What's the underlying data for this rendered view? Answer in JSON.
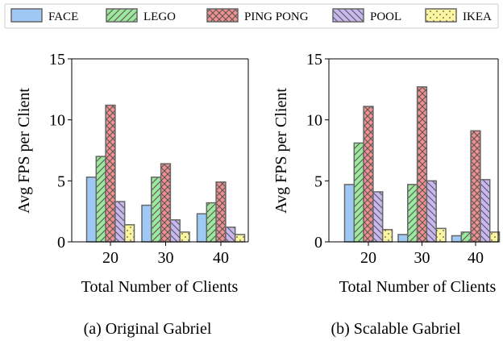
{
  "legend": {
    "placement": "top",
    "entries": [
      {
        "name": "FACE",
        "color": "#9ec9f5",
        "hatch": "none"
      },
      {
        "name": "LEGO",
        "color": "#9ee89e",
        "hatch": "diagonal"
      },
      {
        "name": "PING PONG",
        "color": "#f28f8f",
        "hatch": "cross"
      },
      {
        "name": "POOL",
        "color": "#c9b8f0",
        "hatch": "back-diagonal"
      },
      {
        "name": "IKEA",
        "color": "#fbf5a0",
        "hatch": "dots"
      }
    ]
  },
  "chart_data": [
    {
      "type": "bar",
      "caption": "(a) Original Gabriel",
      "xlabel": "Total Number of Clients",
      "ylabel": "Avg FPS per Client",
      "ylim": [
        0,
        15
      ],
      "yticks": [
        0,
        5,
        10,
        15
      ],
      "categories": [
        "20",
        "30",
        "40"
      ],
      "grid": false,
      "series": [
        {
          "name": "FACE",
          "values": [
            5.3,
            3.0,
            2.3
          ]
        },
        {
          "name": "LEGO",
          "values": [
            7.0,
            5.3,
            3.2
          ]
        },
        {
          "name": "PING PONG",
          "values": [
            11.2,
            6.4,
            4.9
          ]
        },
        {
          "name": "POOL",
          "values": [
            3.3,
            1.8,
            1.2
          ]
        },
        {
          "name": "IKEA",
          "values": [
            1.4,
            0.8,
            0.6
          ]
        }
      ]
    },
    {
      "type": "bar",
      "caption": "(b) Scalable Gabriel",
      "xlabel": "Total Number of Clients",
      "ylabel": "Avg FPS per Client",
      "ylim": [
        0,
        15
      ],
      "yticks": [
        0,
        5,
        10,
        15
      ],
      "categories": [
        "20",
        "30",
        "40"
      ],
      "grid": false,
      "series": [
        {
          "name": "FACE",
          "values": [
            4.7,
            0.6,
            0.5
          ]
        },
        {
          "name": "LEGO",
          "values": [
            8.1,
            4.7,
            0.8
          ]
        },
        {
          "name": "PING PONG",
          "values": [
            11.1,
            12.7,
            9.1
          ]
        },
        {
          "name": "POOL",
          "values": [
            4.1,
            5.0,
            5.1
          ]
        },
        {
          "name": "IKEA",
          "values": [
            1.0,
            1.1,
            0.8
          ]
        }
      ]
    }
  ]
}
